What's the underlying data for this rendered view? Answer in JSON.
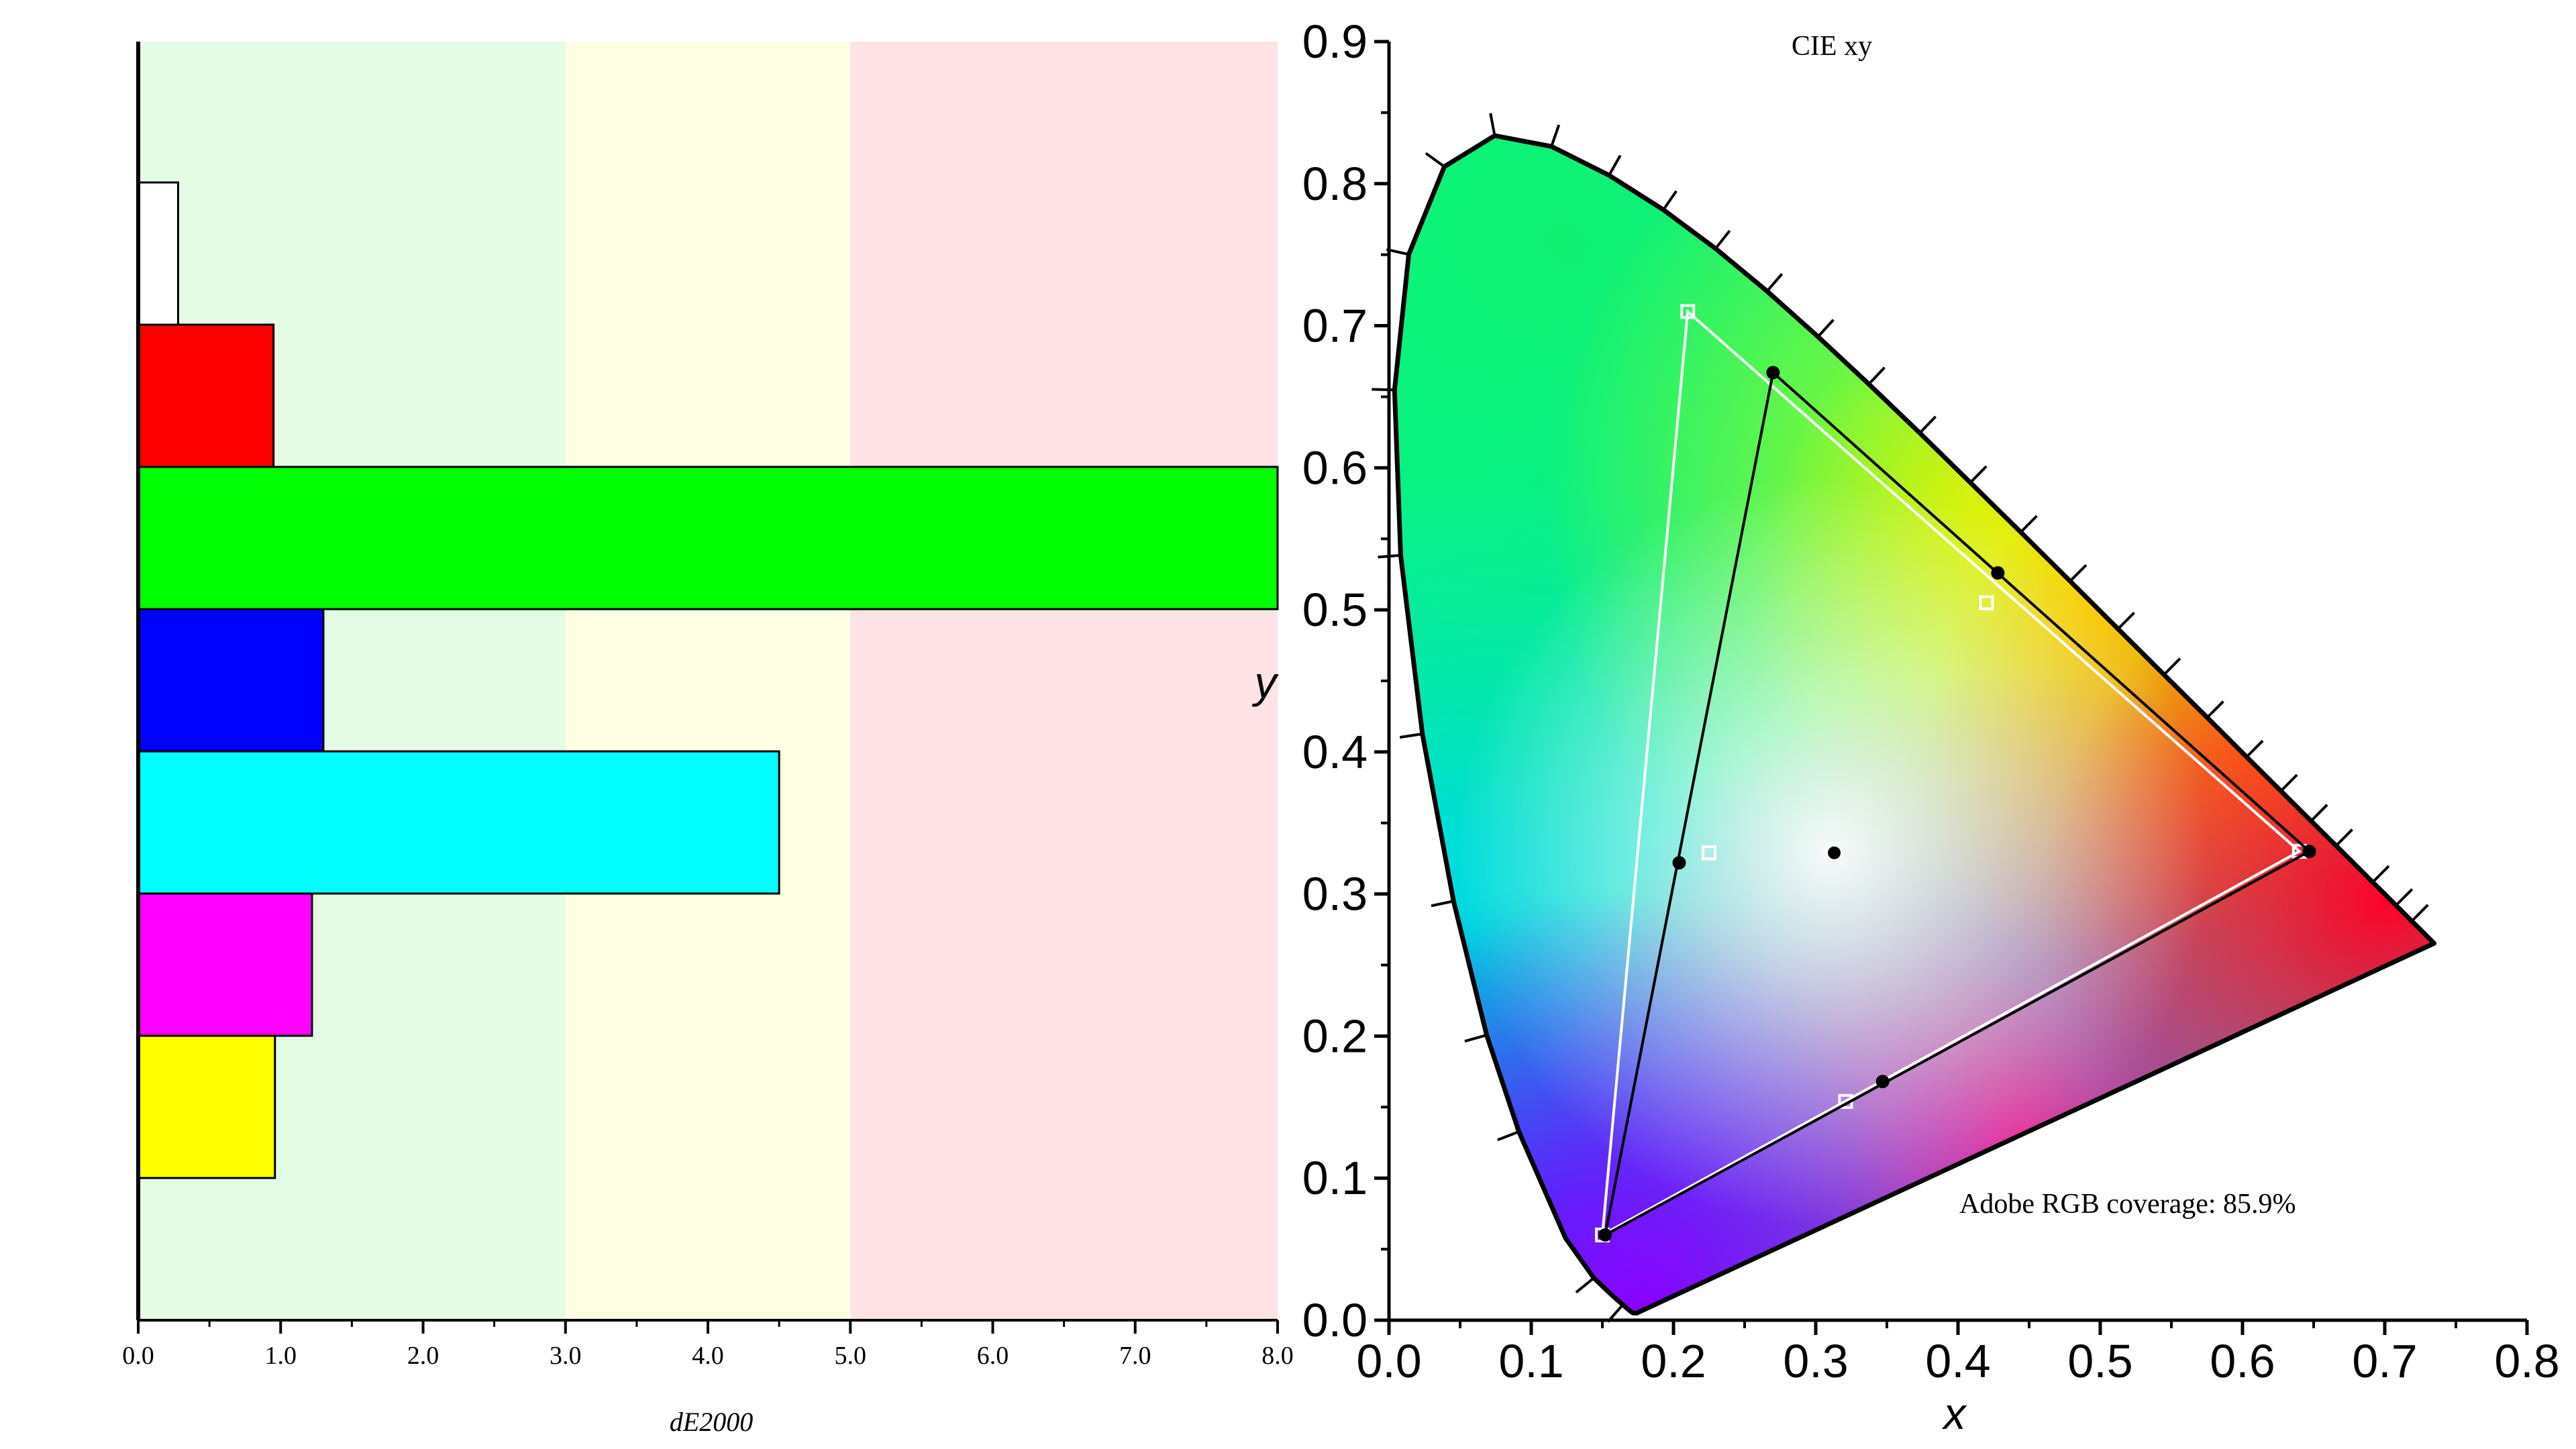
{
  "chart_data": [
    {
      "type": "bar",
      "orientation": "horizontal",
      "xlabel": "dE2000",
      "xlim": [
        0,
        8
      ],
      "xticks": [
        "0.0",
        "1.0",
        "2.0",
        "3.0",
        "4.0",
        "5.0",
        "6.0",
        "7.0",
        "8.0"
      ],
      "categories": [
        "White",
        "Red",
        "Green",
        "Blue",
        "Cyan",
        "Magenta",
        "Yellow"
      ],
      "values": [
        0.28,
        0.95,
        8.0,
        1.3,
        4.5,
        1.22,
        0.96
      ],
      "bar_colors": [
        "#ffffff",
        "#ff0000",
        "#00ff00",
        "#0000ff",
        "#00ffff",
        "#ff00ff",
        "#ffff00"
      ],
      "bands": [
        {
          "from": 0,
          "to": 3,
          "color": "#e4fce4"
        },
        {
          "from": 3,
          "to": 5,
          "color": "#fefee2"
        },
        {
          "from": 5,
          "to": 8,
          "color": "#fde3e5"
        }
      ]
    },
    {
      "type": "scatter",
      "title": "CIE xy",
      "xlabel": "x",
      "ylabel": "y",
      "xlim": [
        0,
        0.8
      ],
      "ylim": [
        0,
        0.9
      ],
      "xticks": [
        "0.0",
        "0.1",
        "0.2",
        "0.3",
        "0.4",
        "0.5",
        "0.6",
        "0.7",
        "0.8"
      ],
      "yticks": [
        "0.0",
        "0.1",
        "0.2",
        "0.3",
        "0.4",
        "0.5",
        "0.6",
        "0.7",
        "0.8",
        "0.9"
      ],
      "annotation": "Adobe RGB coverage: 85.9%",
      "reference_gamut": [
        {
          "x": 0.21,
          "y": 0.71
        },
        {
          "x": 0.64,
          "y": 0.33
        },
        {
          "x": 0.15,
          "y": 0.06
        }
      ],
      "reference_secondaries": [
        {
          "x": 0.225,
          "y": 0.329
        },
        {
          "x": 0.321,
          "y": 0.154
        },
        {
          "x": 0.42,
          "y": 0.505
        }
      ],
      "measured_gamut": [
        {
          "x": 0.27,
          "y": 0.667
        },
        {
          "x": 0.647,
          "y": 0.33
        },
        {
          "x": 0.152,
          "y": 0.06
        }
      ],
      "measured_secondaries": [
        {
          "x": 0.204,
          "y": 0.322
        },
        {
          "x": 0.347,
          "y": 0.168
        },
        {
          "x": 0.428,
          "y": 0.526
        }
      ],
      "white_point": {
        "x": 0.313,
        "y": 0.329
      },
      "colors": {
        "reference": "#ffffff",
        "measured": "#000000"
      }
    }
  ]
}
